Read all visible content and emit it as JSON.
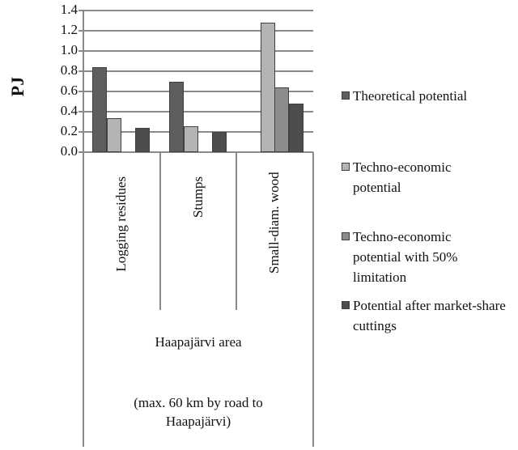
{
  "chart_data": {
    "type": "bar",
    "title": "",
    "xlabel": "Haapajärvi area (max. 60 km by road to Haapajärvi)",
    "ylabel": "PJ",
    "ylim": [
      0,
      1.4
    ],
    "yticks": [
      "0.0",
      "0.2",
      "0.4",
      "0.6",
      "0.8",
      "1.0",
      "1.2",
      "1.4"
    ],
    "grid": true,
    "legend_position": "right",
    "categories": [
      "Logging residues",
      "Stumps",
      "Small-diam. wood"
    ],
    "series": [
      {
        "name": "Theoretical potential",
        "color": "#5e5e5e",
        "values": [
          0.84,
          0.7,
          0
        ]
      },
      {
        "name": "Techno-economic potential",
        "color": "#b4b4b4",
        "values": [
          0.34,
          0.26,
          1.28
        ]
      },
      {
        "name": "Techno-economic potential with 50% limitation",
        "color": "#8c8c8c",
        "values": [
          0,
          0,
          0.64
        ]
      },
      {
        "name": "Potential after market-share cuttings",
        "color": "#4d4d4d",
        "values": [
          0.24,
          0.2,
          0.48
        ]
      }
    ]
  },
  "axis": {
    "ylabel": "PJ",
    "yticks": [
      "1.4",
      "1.2",
      "1.0",
      "0.8",
      "0.6",
      "0.4",
      "0.2",
      "0.0"
    ]
  },
  "categories": [
    "Logging residues",
    "Stumps",
    "Small-diam. wood"
  ],
  "group": {
    "line1": "Haapajärvi area",
    "line2": "(max. 60 km by road to",
    "line3": "Haapajärvi)"
  },
  "legend": [
    {
      "label": "Theoretical potential",
      "color": "#5e5e5e"
    },
    {
      "label": "Techno-economic potential",
      "color": "#b4b4b4"
    },
    {
      "label": "Techno-economic potential with 50% limitation",
      "color": "#8c8c8c"
    },
    {
      "label": "Potential after market-share cuttings",
      "color": "#4d4d4d"
    }
  ]
}
